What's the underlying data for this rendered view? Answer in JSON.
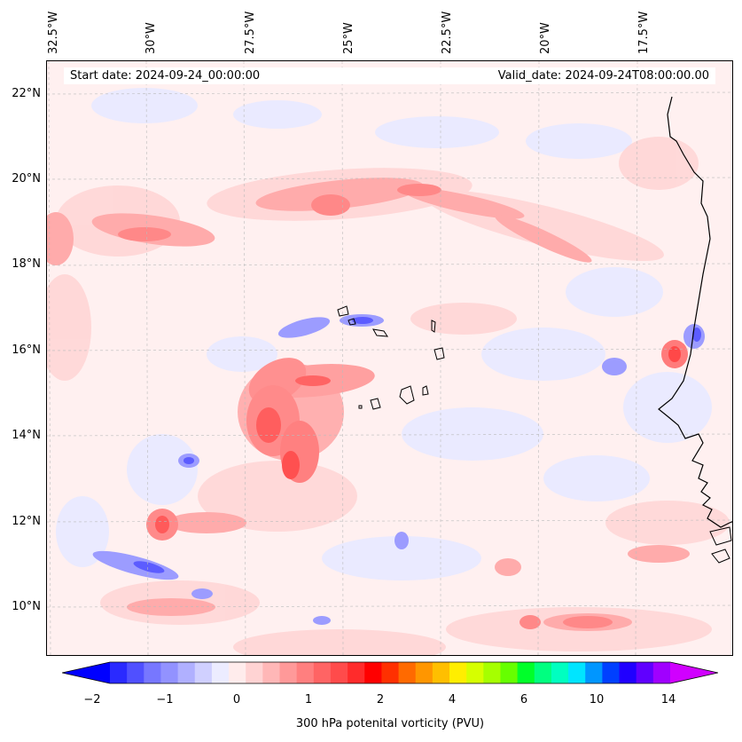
{
  "map": {
    "start_date": "Start date: 2024-09-24_00:00:00",
    "valid_date": "Valid_date: 2024-09-24T08:00:00.00",
    "lon_labels": [
      "32.5°W",
      "30°W",
      "27.5°W",
      "25°W",
      "22.5°W",
      "20°W",
      "17.5°W"
    ],
    "lat_labels": [
      "22°N",
      "20°N",
      "18°N",
      "16°N",
      "14°N",
      "12°N",
      "10°N"
    ],
    "field": "300 hPa potential vorticity",
    "features": [
      {
        "name": "cyclone-pv-maximum",
        "lon": -26.8,
        "lat": 14.4
      },
      {
        "name": "pv-streamer-band",
        "lon": -23.5,
        "lat": 19.6
      },
      {
        "name": "cape-verde-islands",
        "lon": -24.0,
        "lat": 15.8
      }
    ]
  },
  "colorbar": {
    "label": "300 hPa potenital vorticity (PVU)",
    "tick_labels": [
      "−2",
      "−1",
      "0",
      "1",
      "2",
      "4",
      "6",
      "10",
      "14"
    ],
    "colors": [
      "#0000ff",
      "#2a2aff",
      "#5050ff",
      "#7777ff",
      "#9292ff",
      "#b0b0ff",
      "#d0d0ff",
      "#ececff",
      "#ffecec",
      "#ffd3d3",
      "#ffb7b7",
      "#ff9999",
      "#ff7f7f",
      "#ff6464",
      "#ff4b4b",
      "#ff2b2b",
      "#ff0000",
      "#ff3000",
      "#ff6a00",
      "#ff9600",
      "#ffbf00",
      "#ffee00",
      "#d6ff00",
      "#a6ff00",
      "#66ff00",
      "#00ff2a",
      "#00ff80",
      "#00ffc0",
      "#00e5ff",
      "#0096ff",
      "#0040ff",
      "#2000ff",
      "#6000ff",
      "#a000ff",
      "#d000ff"
    ]
  }
}
